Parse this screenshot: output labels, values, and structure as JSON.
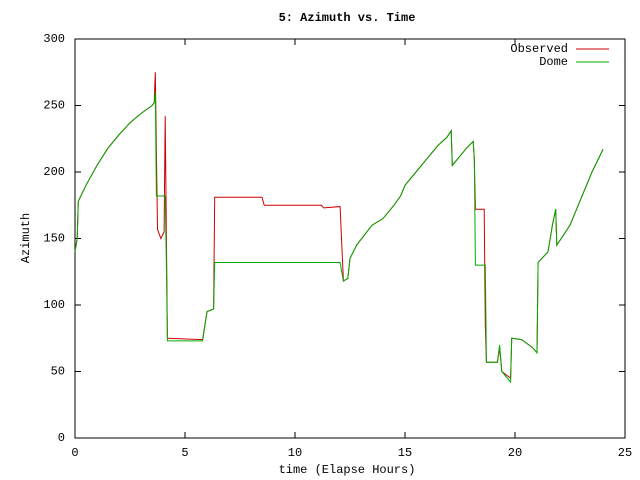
{
  "chart_data": {
    "type": "line",
    "title": "5: Azimuth vs. Time",
    "xlabel": "time (Elapse Hours)",
    "ylabel": "Azimuth",
    "x": [
      0,
      0.05,
      0.1,
      0.15,
      0.5,
      1,
      1.5,
      2,
      2.5,
      3,
      3.5,
      3.6,
      3.65,
      3.7,
      3.75,
      3.9,
      4.05,
      4.1,
      4.15,
      4.2,
      5.8,
      6.0,
      6.3,
      6.35,
      8.5,
      8.6,
      11.2,
      11.3,
      12.05,
      12.2,
      12.4,
      12.5,
      12.8,
      13.5,
      14,
      14.5,
      14.8,
      15,
      15.5,
      16,
      16.5,
      16.9,
      17.1,
      17.15,
      17.5,
      17.8,
      18.1,
      18.15,
      18.2,
      18.6,
      18.65,
      18.7,
      19.2,
      19.3,
      19.4,
      19.8,
      19.85,
      20.3,
      20.8,
      21.0,
      21.05,
      21.5,
      21.7,
      21.85,
      21.9,
      22.5,
      23,
      23.5,
      24
    ],
    "series": [
      {
        "name": "Observed",
        "color": "#cc0000",
        "values": [
          140,
          145,
          150,
          178,
          190,
          205,
          218,
          228,
          237,
          244,
          250,
          252,
          275,
          215,
          157,
          150,
          155,
          242,
          160,
          75,
          74,
          95,
          97,
          181,
          181,
          175,
          175,
          173,
          174,
          118,
          120,
          135,
          145,
          160,
          165,
          175,
          182,
          190,
          200,
          210,
          220,
          226,
          231,
          205,
          212,
          218,
          223,
          210,
          172,
          172,
          85,
          57,
          57,
          68,
          50,
          45,
          75,
          74,
          68,
          64,
          132,
          140,
          160,
          172,
          145,
          160,
          180,
          200,
          217
        ]
      },
      {
        "name": "Dome",
        "color": "#00aa00",
        "values": [
          140,
          145,
          150,
          178,
          190,
          205,
          218,
          228,
          237,
          244,
          250,
          252,
          260,
          182,
          182,
          182,
          182,
          182,
          135,
          73,
          73,
          95,
          97,
          132,
          132,
          132,
          132,
          132,
          132,
          118,
          120,
          135,
          145,
          160,
          165,
          175,
          182,
          190,
          200,
          210,
          220,
          226,
          231,
          205,
          212,
          218,
          223,
          210,
          130,
          130,
          130,
          57,
          57,
          70,
          50,
          42,
          75,
          74,
          68,
          64,
          132,
          140,
          160,
          172,
          145,
          160,
          180,
          200,
          217
        ]
      }
    ],
    "xlim": [
      0,
      25
    ],
    "xticks": [
      0,
      5,
      10,
      15,
      20,
      25
    ],
    "ylim": [
      0,
      300
    ],
    "yticks": [
      0,
      50,
      100,
      150,
      200,
      250,
      300
    ],
    "grid": false,
    "legend": "upper right"
  }
}
